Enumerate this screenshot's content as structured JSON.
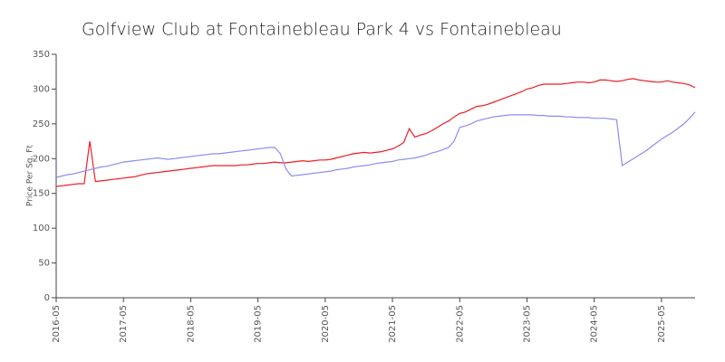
{
  "chart_data": {
    "type": "line",
    "title": "Golfview Club at Fontainebleau Park 4 vs Fontainebleau",
    "y_label": "Price Per Sq. Ft",
    "x": [
      "2016-05",
      "2016-06",
      "2016-07",
      "2016-08",
      "2016-09",
      "2016-10",
      "2016-11",
      "2016-12",
      "2017-01",
      "2017-02",
      "2017-03",
      "2017-04",
      "2017-05",
      "2017-06",
      "2017-07",
      "2017-08",
      "2017-09",
      "2017-10",
      "2017-11",
      "2017-12",
      "2018-01",
      "2018-02",
      "2018-03",
      "2018-04",
      "2018-05",
      "2018-06",
      "2018-07",
      "2018-08",
      "2018-09",
      "2018-10",
      "2018-11",
      "2018-12",
      "2019-01",
      "2019-02",
      "2019-03",
      "2019-04",
      "2019-05",
      "2019-06",
      "2019-07",
      "2019-08",
      "2019-09",
      "2019-10",
      "2019-11",
      "2019-12",
      "2020-01",
      "2020-02",
      "2020-03",
      "2020-04",
      "2020-05",
      "2020-06",
      "2020-07",
      "2020-08",
      "2020-09",
      "2020-10",
      "2020-11",
      "2020-12",
      "2021-01",
      "2021-02",
      "2021-03",
      "2021-04",
      "2021-05",
      "2021-06",
      "2021-07",
      "2021-08",
      "2021-09",
      "2021-10",
      "2021-11",
      "2021-12",
      "2022-01",
      "2022-02",
      "2022-03",
      "2022-04",
      "2022-05",
      "2022-06",
      "2022-07",
      "2022-08",
      "2022-09",
      "2022-10",
      "2022-11",
      "2022-12",
      "2023-01",
      "2023-02",
      "2023-03",
      "2023-04",
      "2023-05",
      "2023-06",
      "2023-07",
      "2023-08",
      "2023-09",
      "2023-10",
      "2023-11",
      "2023-12",
      "2024-01",
      "2024-02",
      "2024-03",
      "2024-04",
      "2024-05",
      "2024-06",
      "2024-07",
      "2024-08",
      "2024-09",
      "2024-10",
      "2024-11",
      "2024-12",
      "2025-01",
      "2025-02",
      "2025-03",
      "2025-04",
      "2025-05",
      "2025-06",
      "2025-07",
      "2025-08",
      "2025-09",
      "2025-10",
      "2025-11"
    ],
    "xticks": [
      "2016-05",
      "2017-05",
      "2018-05",
      "2019-05",
      "2020-05",
      "2021-05",
      "2022-05",
      "2023-05",
      "2024-05",
      "2025-05"
    ],
    "ylim": [
      0,
      350
    ],
    "yticks": [
      0,
      50,
      100,
      150,
      200,
      250,
      300,
      350
    ],
    "grid": false,
    "series": [
      {
        "color": "#ee1c25",
        "values": [
          160,
          161,
          162,
          163,
          164,
          164,
          225,
          167,
          168,
          169,
          170,
          171,
          172,
          173,
          174,
          176,
          178,
          179,
          180,
          181,
          182,
          183,
          184,
          185,
          186,
          187,
          188,
          189,
          190,
          190,
          190,
          190,
          190,
          191,
          191,
          192,
          193,
          193,
          194,
          195,
          194,
          194,
          195,
          196,
          197,
          196,
          197,
          198,
          198,
          199,
          201,
          203,
          205,
          207,
          208,
          209,
          208,
          209,
          210,
          212,
          214,
          218,
          223,
          243,
          231,
          234,
          236,
          240,
          245,
          250,
          254,
          260,
          265,
          267,
          271,
          275,
          276,
          278,
          281,
          284,
          287,
          290,
          293,
          296,
          300,
          302,
          305,
          307,
          307,
          307,
          307,
          308,
          309,
          310,
          310,
          309,
          310,
          313,
          313,
          312,
          311,
          312,
          314,
          315,
          313,
          312,
          311,
          310,
          310,
          312,
          310,
          309,
          308,
          306,
          302
        ]
      },
      {
        "color": "#8c8cf0",
        "values": [
          173,
          175,
          177,
          178,
          180,
          182,
          184,
          186,
          188,
          189,
          191,
          193,
          195,
          196,
          197,
          198,
          199,
          200,
          201,
          200,
          199,
          200,
          201,
          202,
          203,
          204,
          205,
          206,
          207,
          207,
          208,
          209,
          210,
          211,
          212,
          213,
          214,
          215,
          216,
          216,
          207,
          185,
          175,
          176,
          177,
          178,
          179,
          180,
          181,
          182,
          184,
          185,
          186,
          188,
          189,
          190,
          191,
          193,
          194,
          195,
          196,
          198,
          199,
          200,
          201,
          203,
          205,
          208,
          210,
          213,
          216,
          225,
          245,
          247,
          250,
          254,
          256,
          258,
          260,
          261,
          262,
          263,
          263,
          263,
          263,
          263,
          262,
          262,
          261,
          261,
          261,
          260,
          260,
          259,
          259,
          259,
          258,
          258,
          258,
          257,
          256,
          190,
          195,
          200,
          205,
          210,
          216,
          222,
          228,
          233,
          238,
          244,
          250,
          258,
          267
        ]
      }
    ]
  }
}
